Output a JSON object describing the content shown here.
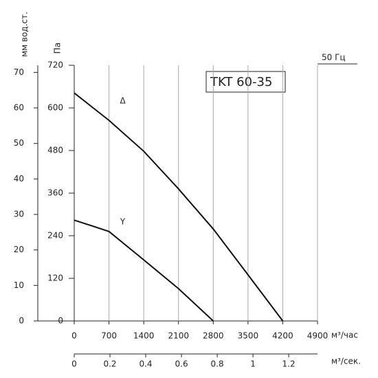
{
  "chart_data": {
    "type": "line",
    "title": "TKT 60-35",
    "frequency_label": "50 Гц",
    "y_label": "Па",
    "y2_label": "мм вод.ст.",
    "x_label": "м³/час",
    "x2_label": "м³/сек.",
    "xlim": [
      0,
      4900
    ],
    "xticks": [
      0,
      700,
      1400,
      2100,
      2800,
      3500,
      4200,
      4900
    ],
    "ylim": [
      0,
      720
    ],
    "yticks": [
      0,
      120,
      240,
      360,
      480,
      600,
      720
    ],
    "y2lim": [
      0,
      72
    ],
    "y2ticks": [
      0,
      10,
      20,
      30,
      40,
      50,
      60,
      70
    ],
    "x2lim": [
      0,
      1.3611
    ],
    "x2ticks": [
      0,
      0.2,
      0.4,
      0.6,
      0.8,
      1.0,
      1.2
    ],
    "grid": true,
    "series": [
      {
        "name": "Δ",
        "color": "#111111",
        "x": [
          0,
          700,
          1400,
          2100,
          2800,
          3500,
          4200
        ],
        "values": [
          642,
          565,
          478,
          372,
          259,
          130,
          0
        ]
      },
      {
        "name": "Y",
        "color": "#111111",
        "x": [
          0,
          700,
          1400,
          2100,
          2800
        ],
        "values": [
          284,
          252,
          172,
          91,
          0
        ]
      }
    ]
  }
}
